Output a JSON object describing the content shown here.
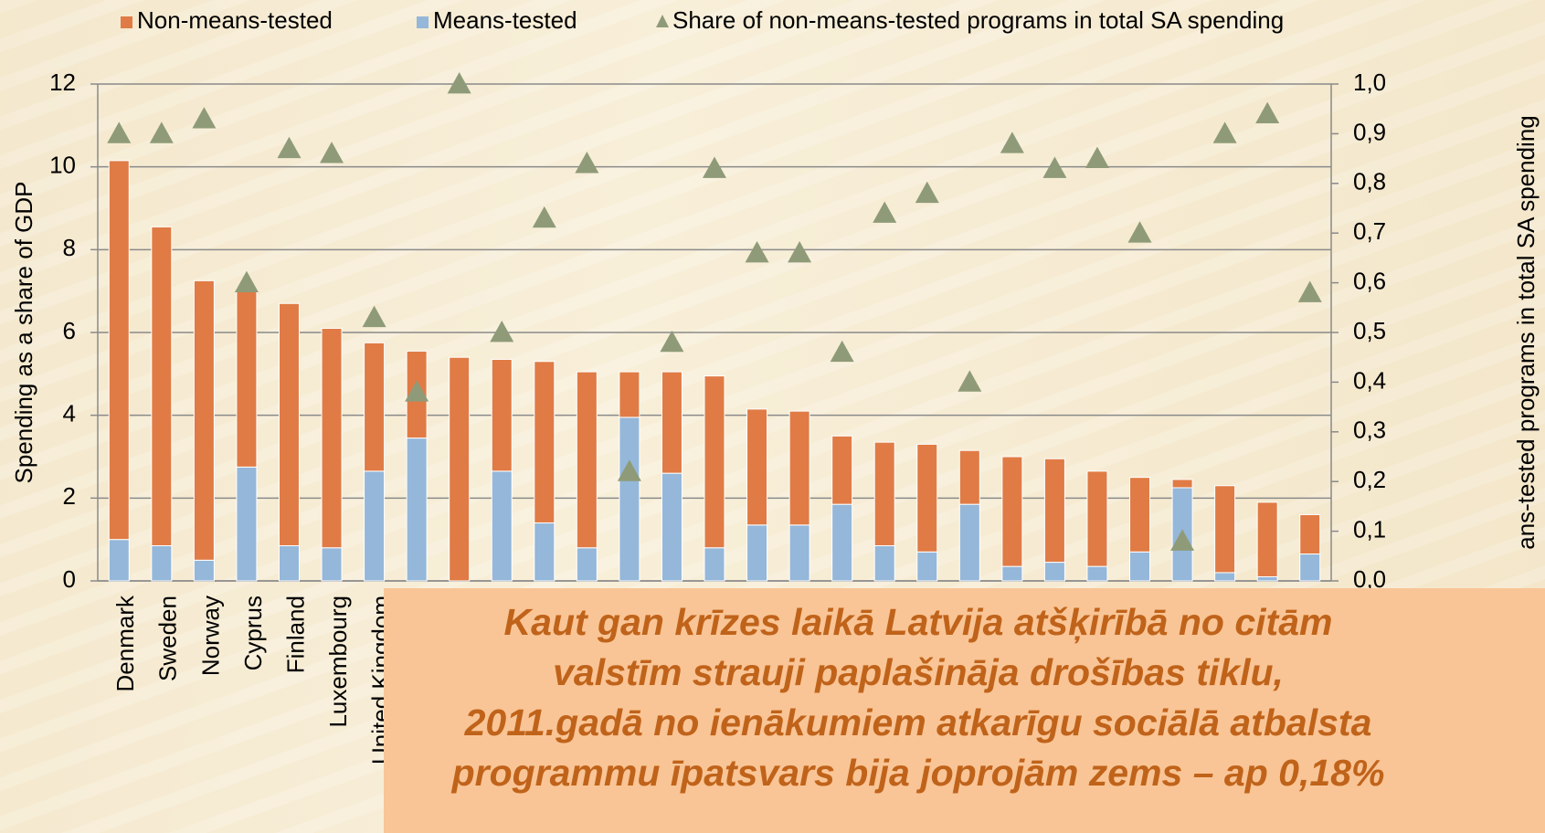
{
  "chart_data": {
    "type": "bar",
    "stacked": true,
    "categories": [
      "Denmark",
      "Sweden",
      "Norway",
      "Cyprus",
      "Finland",
      "Luxembourg",
      "United Kingdom",
      null,
      null,
      null,
      null,
      null,
      null,
      null,
      null,
      null,
      null,
      null,
      null,
      null,
      null,
      null,
      null,
      null,
      null,
      null,
      null,
      null,
      null
    ],
    "series": [
      {
        "name": "Non-means-tested",
        "color": "#e07b45",
        "values": [
          9.15,
          7.7,
          6.75,
          4.25,
          5.85,
          5.3,
          3.1,
          2.1,
          5.4,
          2.7,
          3.9,
          4.25,
          1.1,
          2.45,
          4.15,
          2.8,
          2.75,
          1.65,
          2.5,
          2.6,
          1.3,
          2.65,
          2.5,
          2.3,
          1.8,
          0.2,
          2.1,
          1.8,
          0.95
        ]
      },
      {
        "name": "Means-tested",
        "color": "#95b7d9",
        "values": [
          1.0,
          0.85,
          0.5,
          2.75,
          0.85,
          0.8,
          2.65,
          3.45,
          0,
          2.65,
          1.4,
          0.8,
          3.95,
          2.6,
          0.8,
          1.35,
          1.35,
          1.85,
          0.85,
          0.7,
          1.85,
          0.35,
          0.45,
          0.35,
          0.7,
          2.25,
          0.2,
          0.1,
          0.65
        ]
      },
      {
        "name": "Share of non-means-tested programs in total SA spending",
        "color": "#8f9b78",
        "axis": "y2",
        "marker": "triangle",
        "values": [
          0.9,
          0.9,
          0.93,
          0.6,
          0.87,
          0.86,
          0.53,
          0.38,
          1.0,
          0.5,
          0.73,
          0.84,
          0.22,
          0.48,
          0.83,
          0.66,
          0.66,
          0.46,
          0.74,
          0.78,
          0.4,
          0.88,
          0.83,
          0.85,
          0.7,
          0.08,
          0.9,
          0.94,
          0.58
        ]
      }
    ],
    "y_label": "Spending as a share of GDP",
    "y2_label": "ans-tested programs in total SA spending",
    "ylim": [
      0,
      12
    ],
    "yticks": [
      0,
      2,
      4,
      6,
      8,
      10,
      12
    ],
    "y2lim": [
      0,
      1.0
    ],
    "y2ticks": [
      {
        "value": 0.0,
        "label": "0,0"
      },
      {
        "value": 0.1,
        "label": "0,1"
      },
      {
        "value": 0.2,
        "label": "0,2"
      },
      {
        "value": 0.3,
        "label": "0,3"
      },
      {
        "value": 0.4,
        "label": "0,4"
      },
      {
        "value": 0.5,
        "label": "0,5"
      },
      {
        "value": 0.6,
        "label": "0,6"
      },
      {
        "value": 0.7,
        "label": "0,7"
      },
      {
        "value": 0.8,
        "label": "0,8"
      },
      {
        "value": 0.9,
        "label": "0,9"
      },
      {
        "value": 1.0,
        "label": "1,0"
      }
    ],
    "grid": true,
    "legend": "top",
    "annotation": [
      "Kaut gan krīzes laikā Latvija atšķirībā no citām",
      "valstīm strauji paplašināja drošības tiklu,",
      "2011.gadā no ienākumiem atkarīgu sociālā atbalsta",
      "programmu īpatsvars bija joprojām zems – ap 0,18%"
    ]
  }
}
